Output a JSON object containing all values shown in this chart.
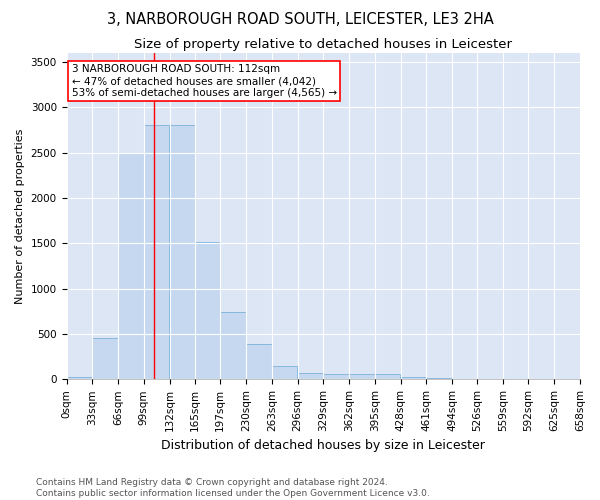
{
  "title_line1": "3, NARBOROUGH ROAD SOUTH, LEICESTER, LE3 2HA",
  "title_line2": "Size of property relative to detached houses in Leicester",
  "xlabel": "Distribution of detached houses by size in Leicester",
  "ylabel": "Number of detached properties",
  "bar_color": "#c5d8f0",
  "bar_edge_color": "#6aaad4",
  "background_color": "#dce6f5",
  "grid_color": "#ffffff",
  "annotation_text_line1": "3 NARBOROUGH ROAD SOUTH: 112sqm",
  "annotation_text_line2": "← 47% of detached houses are smaller (4,042)",
  "annotation_text_line3": "53% of semi-detached houses are larger (4,565) →",
  "property_line_x": 112,
  "bar_left_edges": [
    0,
    33,
    66,
    99,
    132,
    165,
    197,
    230,
    263,
    296,
    329,
    362,
    395,
    428,
    461,
    494,
    526,
    559,
    592,
    625
  ],
  "bar_widths": [
    33,
    33,
    33,
    33,
    33,
    32,
    33,
    33,
    33,
    33,
    33,
    33,
    33,
    33,
    33,
    32,
    33,
    33,
    33,
    33
  ],
  "bar_heights": [
    28,
    460,
    2500,
    2810,
    2810,
    1510,
    740,
    390,
    145,
    75,
    55,
    55,
    55,
    30,
    10,
    5,
    5,
    5,
    5,
    5
  ],
  "xtick_labels": [
    "0sqm",
    "33sqm",
    "66sqm",
    "99sqm",
    "132sqm",
    "165sqm",
    "197sqm",
    "230sqm",
    "263sqm",
    "296sqm",
    "329sqm",
    "362sqm",
    "395sqm",
    "428sqm",
    "461sqm",
    "494sqm",
    "526sqm",
    "559sqm",
    "592sqm",
    "625sqm",
    "658sqm"
  ],
  "xtick_positions": [
    0,
    33,
    66,
    99,
    132,
    165,
    197,
    230,
    263,
    296,
    329,
    362,
    395,
    428,
    461,
    494,
    526,
    559,
    592,
    625,
    658
  ],
  "ylim": [
    0,
    3600
  ],
  "xlim": [
    0,
    658
  ],
  "yticks": [
    0,
    500,
    1000,
    1500,
    2000,
    2500,
    3000,
    3500
  ],
  "footer_line1": "Contains HM Land Registry data © Crown copyright and database right 2024.",
  "footer_line2": "Contains public sector information licensed under the Open Government Licence v3.0.",
  "title_fontsize": 10.5,
  "subtitle_fontsize": 9.5,
  "xlabel_fontsize": 9,
  "ylabel_fontsize": 8,
  "tick_fontsize": 7.5,
  "annotation_fontsize": 7.5,
  "footer_fontsize": 6.5
}
